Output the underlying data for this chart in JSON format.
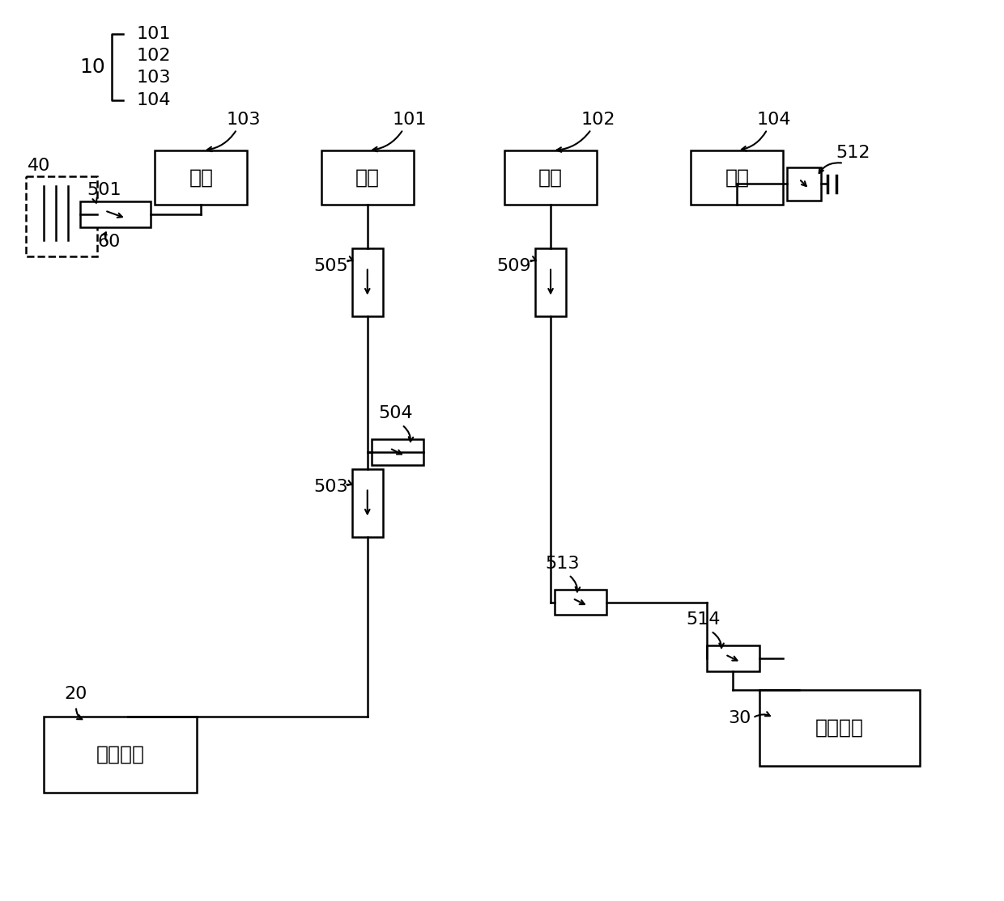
{
  "bg_color": "#ffffff",
  "line_color": "#000000",
  "box_color": "#ffffff",
  "label_103": "103",
  "label_101": "101",
  "label_102": "102",
  "label_104": "104",
  "label_10": "10",
  "label_40": "40",
  "label_501": "501",
  "label_60": "60",
  "label_505": "505",
  "label_509": "509",
  "label_512": "512",
  "label_504": "504",
  "label_503": "503",
  "label_513": "513",
  "label_514": "514",
  "label_20": "20",
  "label_30": "30",
  "text_dangjiao": "弹脚",
  "text_tiaoxie": "调谐开关",
  "text_shepin": "射频芯片",
  "font_size_box": 18,
  "font_size_label": 16
}
